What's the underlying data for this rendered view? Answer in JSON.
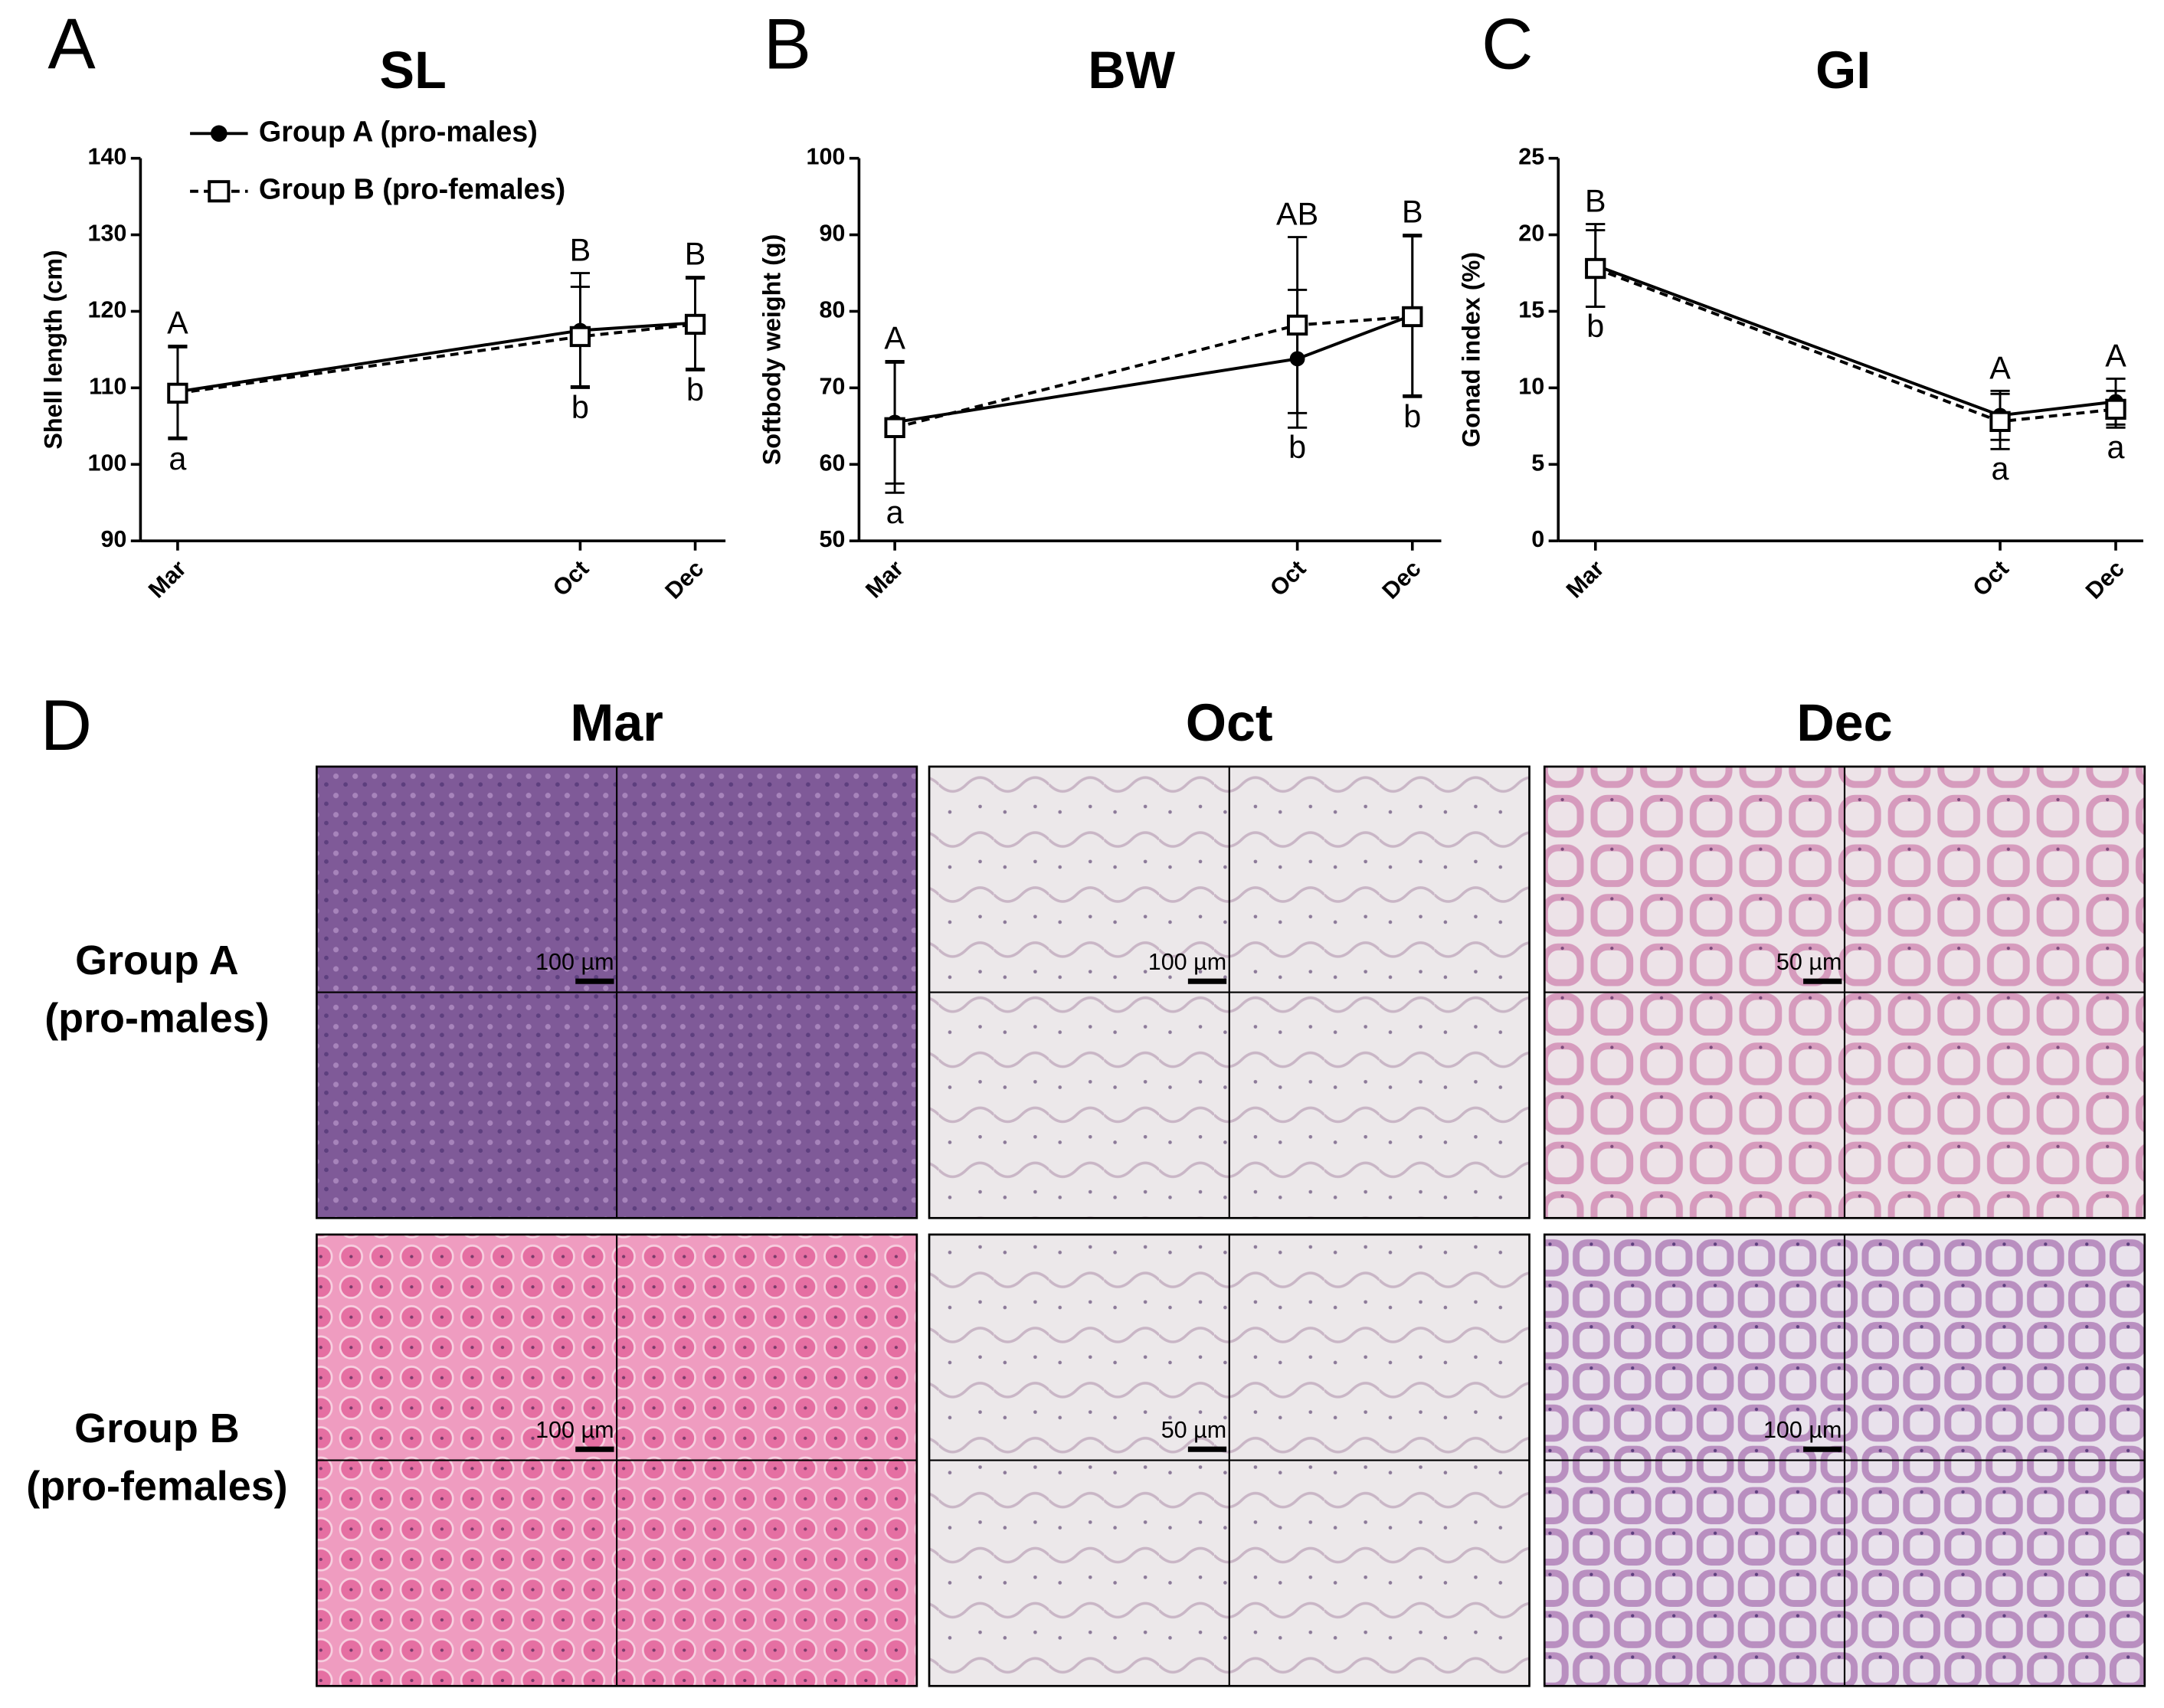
{
  "chart_data": [
    {
      "type": "line",
      "panel": "A",
      "title": "SL",
      "y_label": "Shell length (cm)",
      "categories": [
        "Mar",
        "Oct",
        "Dec"
      ],
      "ylim": [
        90,
        140
      ],
      "yticks": [
        90,
        100,
        110,
        120,
        130,
        140
      ],
      "legend": "upper left",
      "upper_letters": [
        "A",
        "B",
        "B"
      ],
      "lower_letters": [
        "a",
        "b",
        "b"
      ],
      "series": [
        {
          "name": "Group A (pro-males)",
          "color": "#000000",
          "marker": "circle",
          "line_style": "solid",
          "values": [
            109.5,
            117.5,
            118.5
          ],
          "errors": [
            6,
            7.5,
            6
          ]
        },
        {
          "name": "Group B (pro-females)",
          "color": "#000000",
          "marker": "square",
          "line_style": "dashed",
          "values": [
            109.3,
            116.7,
            118.3
          ],
          "errors": [
            6,
            6.5,
            6
          ]
        }
      ]
    },
    {
      "type": "line",
      "panel": "B",
      "title": "BW",
      "y_label": "Softbody weight (g)",
      "categories": [
        "Mar",
        "Oct",
        "Dec"
      ],
      "ylim": [
        50,
        100
      ],
      "yticks": [
        50,
        60,
        70,
        80,
        90,
        100
      ],
      "upper_letters": [
        "A",
        "AB",
        "B"
      ],
      "lower_letters": [
        "a",
        "b",
        "b"
      ],
      "series": [
        {
          "color": "#000000",
          "marker": "circle",
          "line_style": "solid",
          "values": [
            65.5,
            73.8,
            79.5
          ],
          "errors": [
            8,
            9,
            10.5
          ]
        },
        {
          "color": "#000000",
          "marker": "square",
          "line_style": "dashed",
          "values": [
            64.8,
            78.2,
            79.3
          ],
          "errors": [
            8.5,
            11.5,
            10.5
          ]
        }
      ]
    },
    {
      "type": "line",
      "panel": "C",
      "title": "GI",
      "y_label": "Gonad index (%)",
      "categories": [
        "Mar",
        "Oct",
        "Dec"
      ],
      "ylim": [
        0,
        25
      ],
      "yticks": [
        0,
        5,
        10,
        15,
        20,
        25
      ],
      "upper_letters": [
        "B",
        "A",
        "A"
      ],
      "lower_letters": [
        "b",
        "a",
        "a"
      ],
      "series": [
        {
          "color": "#000000",
          "marker": "circle",
          "line_style": "solid",
          "values": [
            18.0,
            8.2,
            9.1
          ],
          "errors": [
            2.7,
            1.6,
            1.5
          ]
        },
        {
          "color": "#000000",
          "marker": "square",
          "line_style": "dashed",
          "values": [
            17.8,
            7.8,
            8.6
          ],
          "errors": [
            2.5,
            1.8,
            1.2
          ]
        }
      ]
    }
  ],
  "panel_d": {
    "label": "D",
    "columns": [
      "Mar",
      "Oct",
      "Dec"
    ],
    "rows": [
      [
        "Group A",
        "(pro-males)"
      ],
      [
        "Group B",
        "(pro-females)"
      ]
    ],
    "scale_bars": [
      [
        "100 µm",
        "100 µm",
        "50 µm"
      ],
      [
        "100 µm",
        "50 µm",
        "100 µm"
      ]
    ]
  }
}
